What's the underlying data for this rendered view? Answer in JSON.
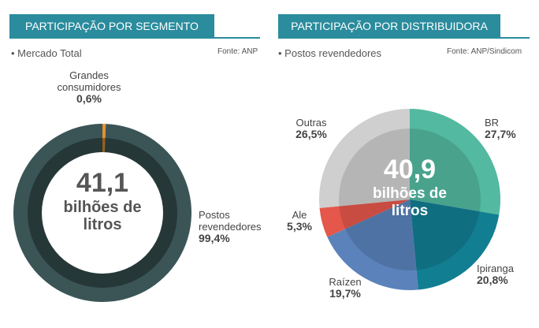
{
  "chart_data": [
    {
      "type": "donut",
      "title": "PARTICIPAÇÃO POR SEGMENTO",
      "subtitle": "Mercado Total",
      "source": "Fonte: ANP",
      "center_value": "41,1",
      "center_unit": "bilhões de litros",
      "categories": [
        "Grandes consumidores",
        "Postos revendedores"
      ],
      "values": [
        0.6,
        99.4
      ],
      "value_labels": [
        "0,6%",
        "99,4%"
      ],
      "colors": [
        "#e8912c",
        "#3b5557"
      ]
    },
    {
      "type": "pie",
      "title": "PARTICIPAÇÃO POR DISTRIBUIDORA",
      "subtitle": "Postos revendedores",
      "source": "Fonte: ANP/Sindicom",
      "center_value": "40,9",
      "center_unit": "bilhões de litros",
      "categories": [
        "BR",
        "Ipiranga",
        "Raízen",
        "Ale",
        "Outras"
      ],
      "values": [
        27.7,
        20.8,
        19.7,
        5.3,
        26.5
      ],
      "value_labels": [
        "27,7%",
        "20,8%",
        "19,7%",
        "5,3%",
        "26,5%"
      ],
      "colors": [
        "#53b9a0",
        "#127e92",
        "#5b82bb",
        "#e4574a",
        "#cfcfcf"
      ]
    }
  ]
}
